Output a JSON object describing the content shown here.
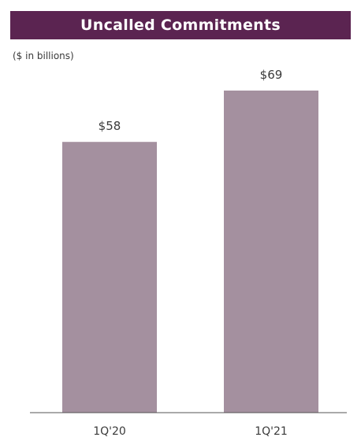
{
  "header": {
    "title": "Uncalled Commitments",
    "unit_note": "($ in billions)"
  },
  "colors": {
    "title_background": "#5b2451",
    "bar": "#a4909f",
    "axis": "#555555"
  },
  "chart_data": {
    "type": "bar",
    "title": "Uncalled Commitments",
    "unit": "($ in billions)",
    "categories": [
      "1Q'20",
      "1Q'21"
    ],
    "values": [
      58,
      69
    ],
    "data_labels": [
      "$58",
      "$69"
    ],
    "ylim": [
      0,
      69
    ],
    "grid": false,
    "legend": "none"
  }
}
